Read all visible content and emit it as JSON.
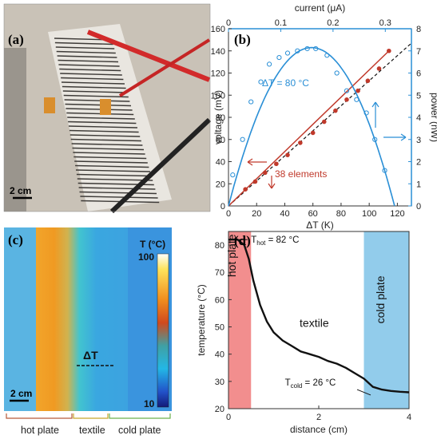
{
  "panels": {
    "a": {
      "label": "(a)",
      "scale_bar": "2 cm"
    },
    "b": {
      "label": "(b)"
    },
    "c": {
      "label": "(c)",
      "scale_bar": "2 cm",
      "colorbar_title": "T (°C)",
      "colorbar_max": "100",
      "colorbar_min": "10",
      "delta_label": "ΔT",
      "regions": [
        "hot plate",
        "textile",
        "cold plate"
      ]
    },
    "d": {
      "label": "(d)"
    }
  },
  "colors": {
    "blue": "#2a8fd6",
    "red": "#c0392b",
    "hot_region": "#f07a7a",
    "cold_region": "#7fc3e8"
  },
  "chart_data": [
    {
      "type": "scatter",
      "xlabel": "ΔT (K)",
      "ylabel": "voltage (mV)",
      "y2label": "power (nW)",
      "x2label": "current (μA)",
      "xlim": [
        0,
        130
      ],
      "ylim": [
        0,
        160
      ],
      "y2lim": [
        0,
        8
      ],
      "x2lim": [
        0,
        0.35
      ],
      "xticks": [
        0,
        20,
        40,
        60,
        80,
        100,
        120
      ],
      "yticks": [
        0,
        20,
        40,
        60,
        80,
        100,
        120,
        140,
        160
      ],
      "y2ticks": [
        0,
        1,
        2,
        3,
        4,
        5,
        6,
        7,
        8
      ],
      "x2ticks": [
        0,
        0.1,
        0.2,
        0.3
      ],
      "annotations": {
        "dT": "ΔT = 80 °C",
        "elements": "38 elements"
      },
      "series": [
        {
          "axis": "voltage",
          "x": [
            12,
            19,
            26,
            34,
            42,
            51,
            60,
            68,
            76,
            84,
            92,
            99,
            107,
            114
          ],
          "y": [
            15,
            22,
            30,
            38,
            46,
            57,
            66,
            76,
            86,
            96,
            104,
            113,
            124,
            140
          ]
        },
        {
          "axis": "power",
          "x": [
            3,
            10,
            16,
            23,
            29,
            36,
            42,
            49,
            56,
            62,
            70,
            77,
            84,
            91,
            98,
            104,
            111
          ],
          "y": [
            1.4,
            3.0,
            4.7,
            5.6,
            6.4,
            6.7,
            6.9,
            7.0,
            7.1,
            7.1,
            6.8,
            6.0,
            5.2,
            4.8,
            4.2,
            3.0,
            1.6
          ]
        }
      ]
    },
    {
      "type": "line",
      "xlabel": "distance (cm)",
      "ylabel": "temperature (°C)",
      "xlim": [
        0,
        4
      ],
      "ylim": [
        20,
        85
      ],
      "xticks": [
        0,
        2,
        4
      ],
      "yticks": [
        20,
        30,
        40,
        50,
        60,
        70,
        80
      ],
      "region_labels": [
        "hot plate",
        "textile",
        "cold plate"
      ],
      "annotations": {
        "hot": "T",
        "hot_sub": "hot",
        "hot_val": " = 82 °C",
        "cold": "T",
        "cold_sub": "cold",
        "cold_val": " = 26 °C"
      },
      "x": [
        0,
        0.2,
        0.35,
        0.45,
        0.55,
        0.7,
        0.85,
        1.0,
        1.2,
        1.4,
        1.6,
        1.8,
        2.0,
        2.2,
        2.4,
        2.6,
        2.8,
        3.0,
        3.2,
        3.4,
        3.6,
        3.8,
        4.0
      ],
      "y": [
        82,
        82,
        80,
        75,
        67,
        58,
        52,
        48,
        45,
        43,
        41,
        40,
        39,
        37.5,
        36.5,
        35,
        33,
        31,
        28,
        27,
        26.5,
        26.2,
        26
      ]
    }
  ]
}
